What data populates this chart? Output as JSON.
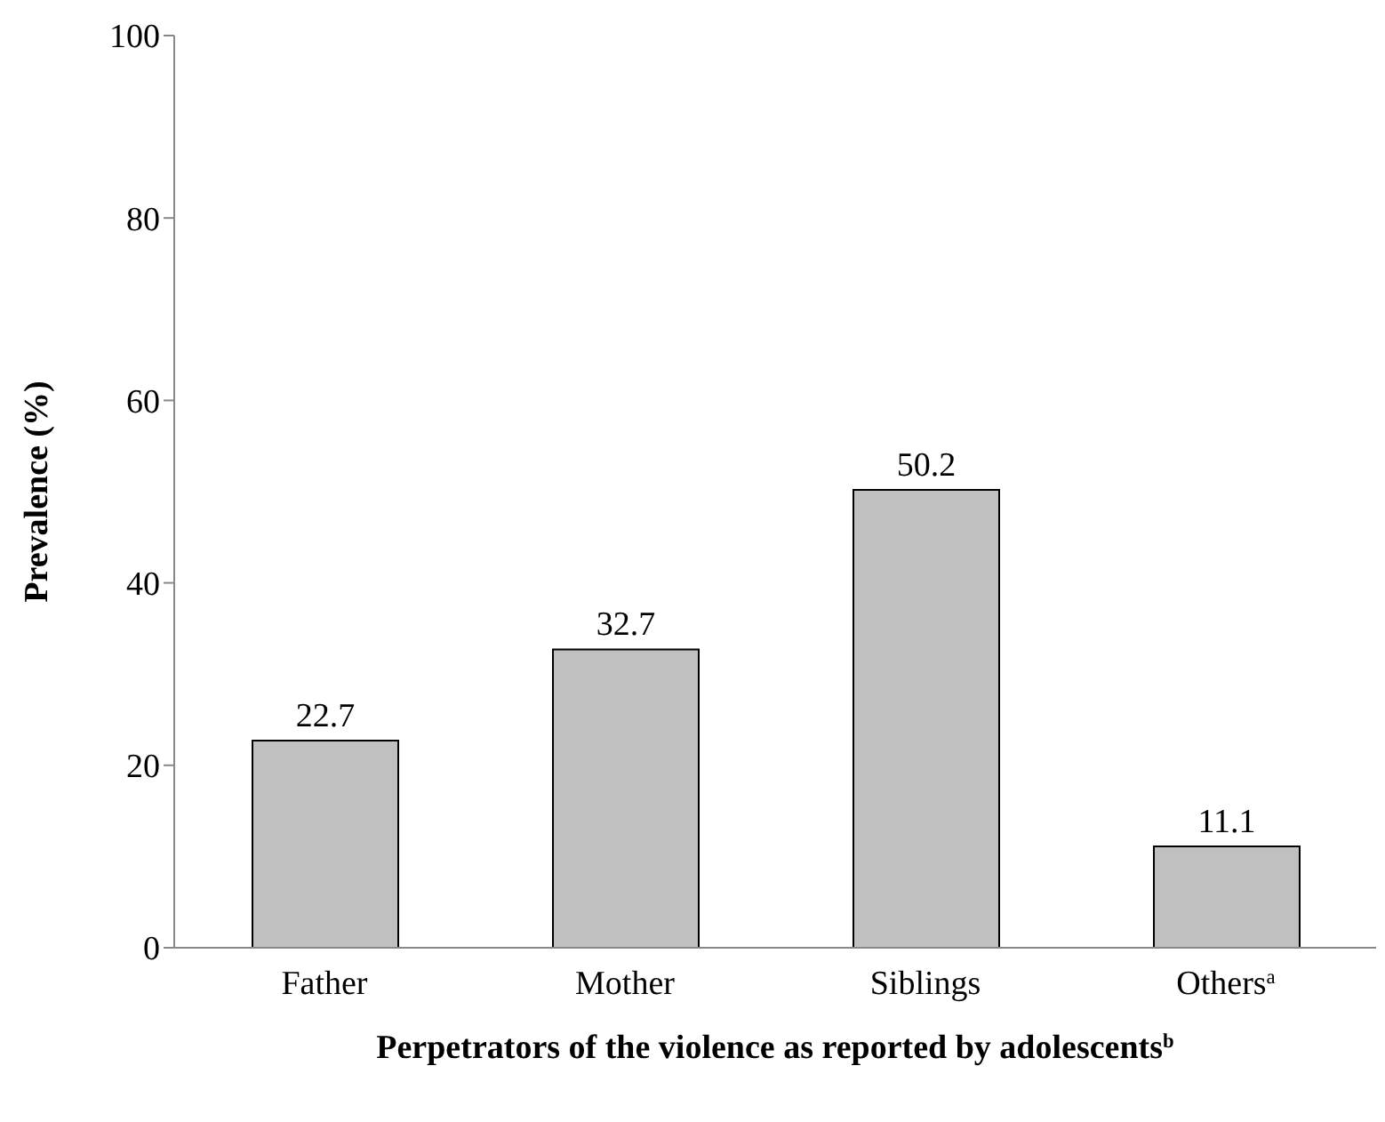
{
  "chart_data": {
    "type": "bar",
    "xlabel": "Perpetrators of the violence as reported by adolescents$^{b}$",
    "ylabel": "Prevalence (%)",
    "categories": [
      "Father",
      "Mother",
      "Siblings",
      "Others$^{a}$"
    ],
    "values": [
      22.7,
      32.7,
      50.2,
      11.1
    ],
    "color": "#c0c0c0",
    "ylim": [
      0,
      100
    ],
    "yticks": [
      0,
      20,
      40,
      60,
      80,
      100
    ],
    "grid": false,
    "data_labels": true
  }
}
